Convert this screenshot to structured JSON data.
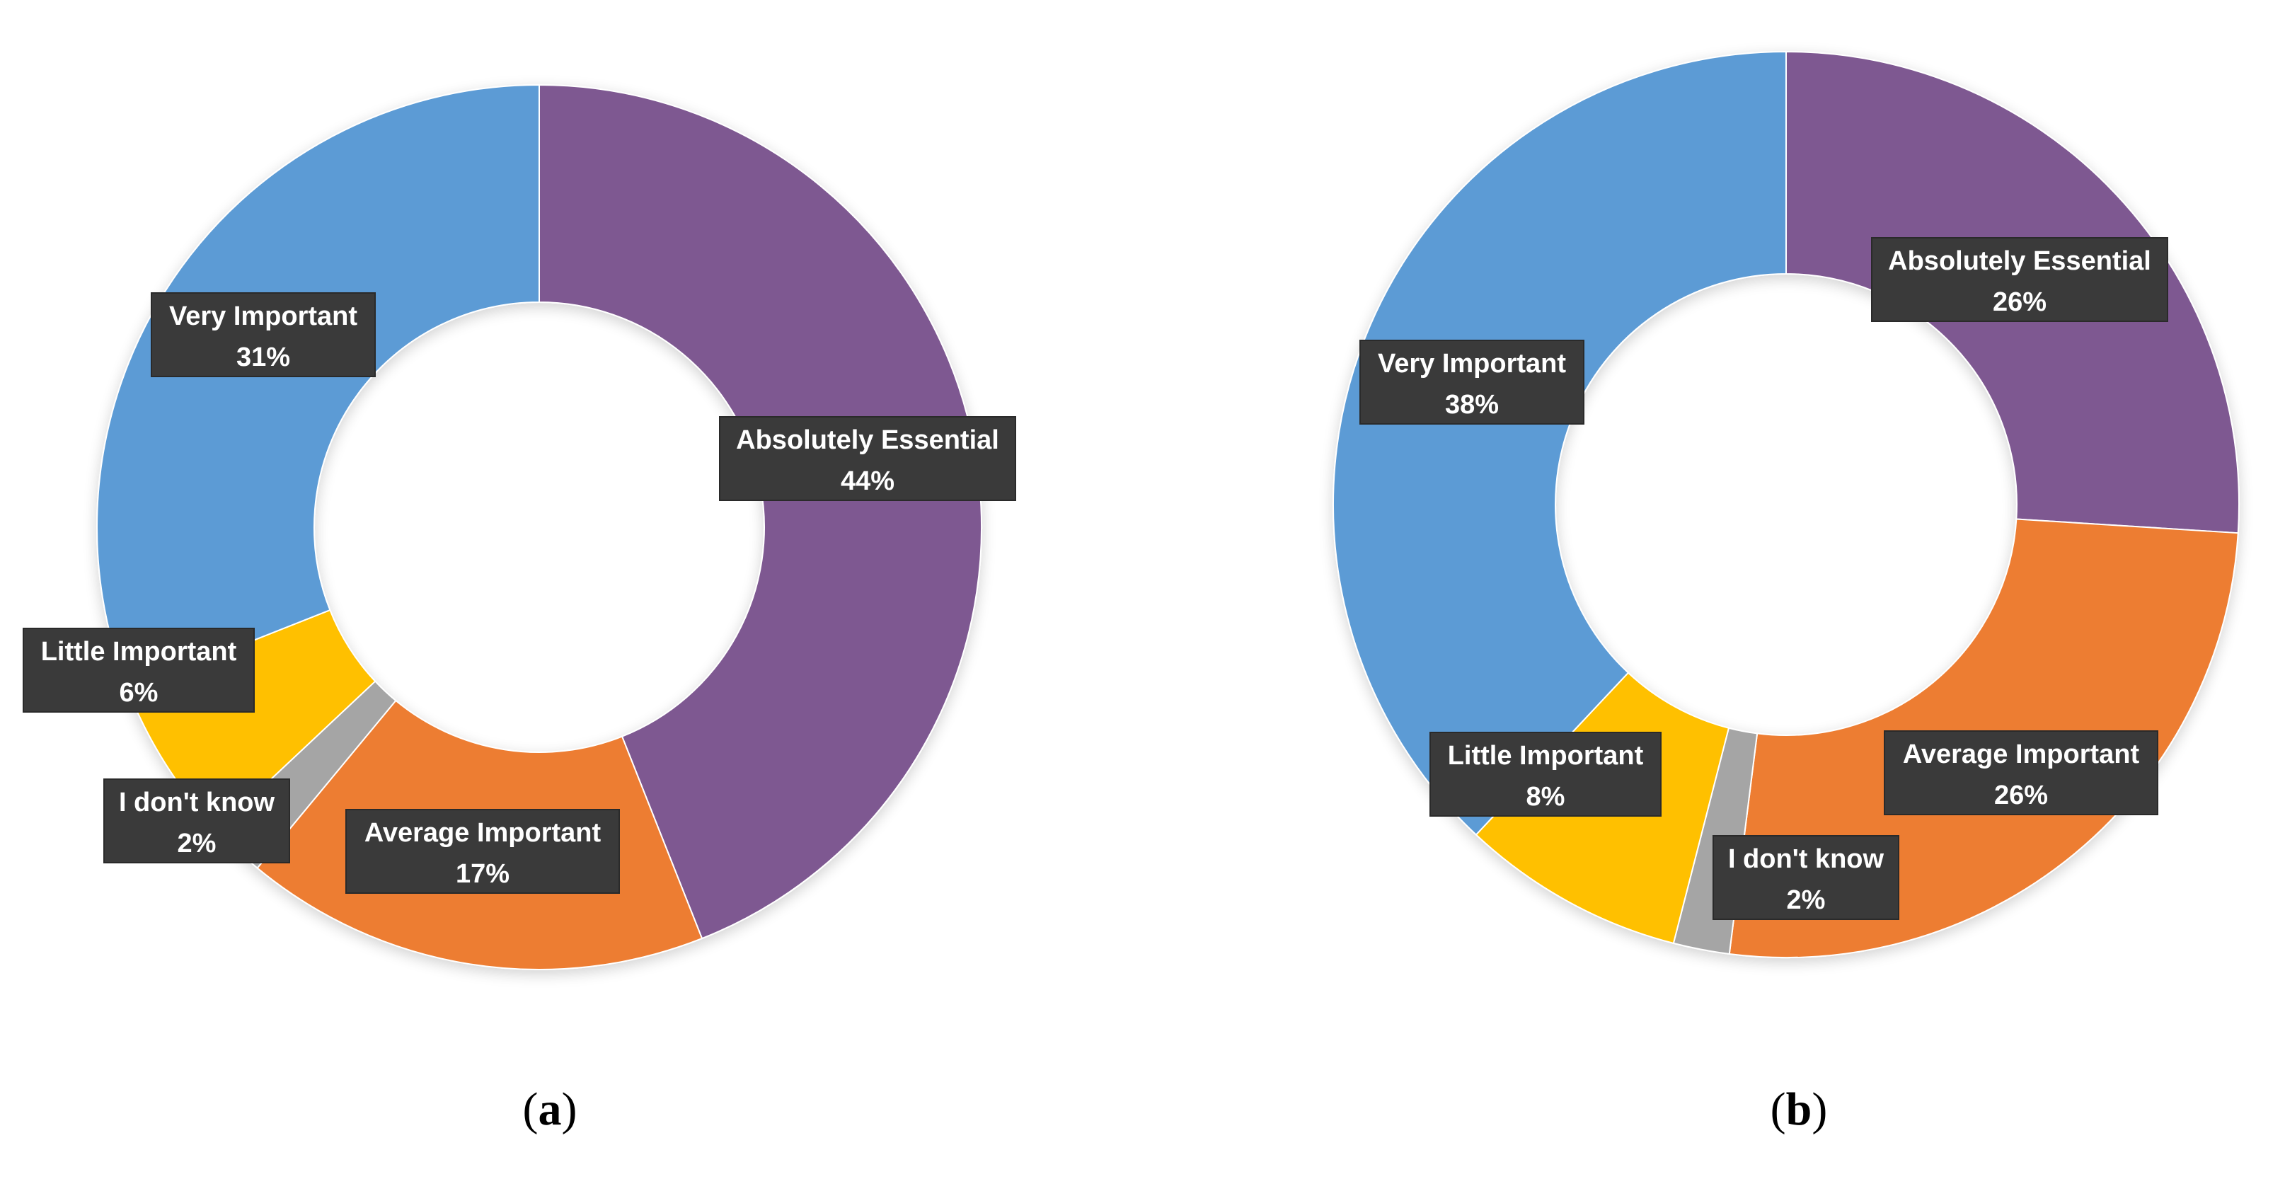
{
  "chart_data": [
    {
      "type": "pie",
      "style": "donut",
      "panel_label": "a",
      "slices": [
        {
          "label": "Absolutely Essential",
          "value": 44,
          "value_text": "44%",
          "color": "#7E5891"
        },
        {
          "label": "Average Important",
          "value": 17,
          "value_text": "17%",
          "color": "#ED7D31"
        },
        {
          "label": "I don't know",
          "value": 2,
          "value_text": "2%",
          "color": "#A5A5A5"
        },
        {
          "label": "Little Important",
          "value": 6,
          "value_text": "6%",
          "color": "#FFC000"
        },
        {
          "label": "Very Important",
          "value": 31,
          "value_text": "31%",
          "color": "#5B9BD5"
        }
      ]
    },
    {
      "type": "pie",
      "style": "donut",
      "panel_label": "b",
      "slices": [
        {
          "label": "Absolutely Essential",
          "value": 26,
          "value_text": "26%",
          "color": "#7E5891"
        },
        {
          "label": "Average Important",
          "value": 26,
          "value_text": "26%",
          "color": "#ED7D31"
        },
        {
          "label": "I don't know",
          "value": 2,
          "value_text": "2%",
          "color": "#A5A5A5"
        },
        {
          "label": "Little Important",
          "value": 8,
          "value_text": "8%",
          "color": "#FFC000"
        },
        {
          "label": "Very Important",
          "value": 38,
          "value_text": "38%",
          "color": "#5B9BD5"
        }
      ]
    }
  ],
  "captions": {
    "a": {
      "open": "(",
      "letter": "a",
      "close": ")"
    },
    "b": {
      "open": "(",
      "letter": "b",
      "close": ")"
    }
  }
}
